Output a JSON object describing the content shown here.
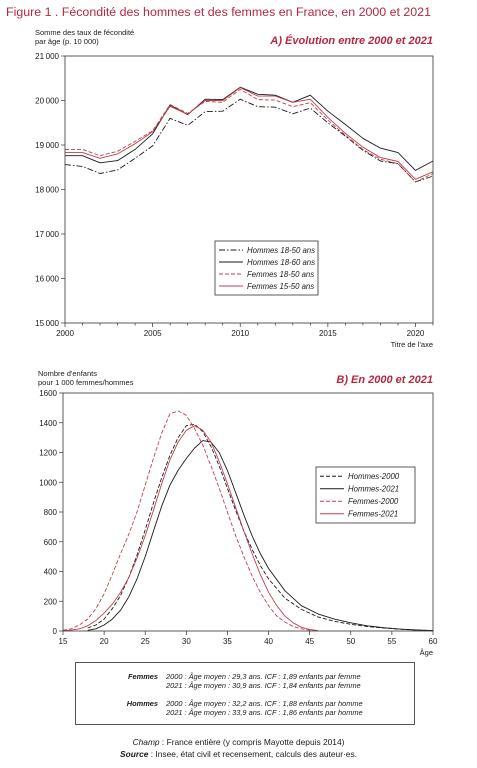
{
  "figure": {
    "title": "Figure 1 . Fécondité des hommes et des femmes en France, en 2000 et 2021",
    "colors": {
      "accent": "#b5283f",
      "hommes": "#1a1a1a",
      "femmes": "#c0404f"
    }
  },
  "panel_a": {
    "heading": "A) Évolution entre 2000 et 2021",
    "ylabel_line1": "Somme des taux de fécondité",
    "ylabel_line2": "par âge (p. 10 000)",
    "xlabel": "Titre de l'axe"
  },
  "panel_b": {
    "heading": "B) En 2000 et 2021",
    "ylabel_line1": "Nombre d'enfants",
    "ylabel_line2": "pour 1 000 femmes/hommes",
    "xlabel": "Âge"
  },
  "info": {
    "femmes_label": "Femmes",
    "femmes_2000": "2000 : Âge moyen : 29,3 ans. ICF : 1,89  enfants par femme",
    "femmes_2021": "2021 : Âge moyen : 30,9 ans. ICF : 1,84  enfants par femme",
    "hommes_label": "Hommes",
    "hommes_2000": "2000 : Âge moyen : 32,2 ans. ICF : 1,88 enfants par homme",
    "hommes_2021": "2021 : Âge moyen : 33,9 ans. ICF : 1,86 enfants par homme"
  },
  "footer": {
    "champ_label": "Champ",
    "champ_text": " : France entière (y compris Mayotte depuis 2014)",
    "source_label": "Source",
    "source_text": " : Insee, état civil et recensement, calculs des auteur·es."
  },
  "chart_data": [
    {
      "type": "line",
      "title": "A) Évolution entre 2000 et 2021",
      "ylabel": "Somme des taux de fécondité par âge (p. 10 000)",
      "xlabel": "Titre de l'axe",
      "xlim": [
        2000,
        2021
      ],
      "ylim": [
        15000,
        21000
      ],
      "xticks": [
        2000,
        2005,
        2010,
        2015,
        2020
      ],
      "yticks": [
        15000,
        16000,
        17000,
        18000,
        19000,
        20000,
        21000
      ],
      "grid": false,
      "legend_position": "bottom-right",
      "x": [
        2000,
        2001,
        2002,
        2003,
        2004,
        2005,
        2006,
        2007,
        2008,
        2009,
        2010,
        2011,
        2012,
        2013,
        2014,
        2015,
        2016,
        2017,
        2018,
        2019,
        2020,
        2021
      ],
      "series": [
        {
          "name": "Hommes 18-50 ans",
          "style": "dashdot",
          "color": "#1a1a1a",
          "values": [
            18560,
            18520,
            18360,
            18440,
            18700,
            18980,
            19600,
            19440,
            19750,
            19760,
            20030,
            19860,
            19850,
            19700,
            19830,
            19500,
            19200,
            18880,
            18640,
            18580,
            18170,
            18300
          ]
        },
        {
          "name": "Hommes 18-60 ans",
          "style": "solid",
          "color": "#1a1a1a",
          "values": [
            18760,
            18760,
            18600,
            18650,
            18900,
            19250,
            19900,
            19680,
            20030,
            20020,
            20300,
            20140,
            20120,
            19960,
            20120,
            19760,
            19460,
            19150,
            18930,
            18830,
            18430,
            18640
          ]
        },
        {
          "name": "Femmes 18-50 ans",
          "style": "dashed",
          "color": "#c0404f",
          "values": [
            18900,
            18900,
            18760,
            18860,
            19080,
            19320,
            19910,
            19710,
            19980,
            19960,
            20250,
            20020,
            20010,
            19860,
            19950,
            19560,
            19220,
            18900,
            18680,
            18580,
            18170,
            18360
          ]
        },
        {
          "name": "Femmes 15-50 ans",
          "style": "solid",
          "color": "#c0404f",
          "values": [
            18830,
            18830,
            18700,
            18800,
            19030,
            19300,
            19870,
            19690,
            20000,
            20000,
            20290,
            20100,
            20100,
            19960,
            20030,
            19620,
            19260,
            18950,
            18720,
            18630,
            18230,
            18400
          ]
        }
      ]
    },
    {
      "type": "line",
      "title": "B) En 2000 et 2021",
      "ylabel": "Nombre d'enfants pour 1 000 femmes/hommes",
      "xlabel": "Âge",
      "xlim": [
        15,
        60
      ],
      "ylim": [
        0,
        1600
      ],
      "xticks": [
        15,
        20,
        25,
        30,
        35,
        40,
        45,
        50,
        55,
        60
      ],
      "yticks": [
        0,
        200,
        400,
        600,
        800,
        1000,
        1200,
        1400,
        1600
      ],
      "grid": false,
      "legend_position": "right",
      "series": [
        {
          "name": "Hommes-2000",
          "style": "dashed",
          "color": "#1a1a1a",
          "x": [
            18,
            19,
            20,
            21,
            22,
            23,
            24,
            25,
            26,
            27,
            28,
            29,
            30,
            31,
            32,
            33,
            34,
            35,
            36,
            37,
            38,
            39,
            40,
            42,
            44,
            46,
            48,
            50,
            52,
            54,
            56,
            58,
            60
          ],
          "values": [
            20,
            40,
            80,
            150,
            240,
            360,
            510,
            680,
            860,
            1030,
            1180,
            1300,
            1380,
            1390,
            1340,
            1240,
            1110,
            960,
            810,
            670,
            550,
            440,
            350,
            220,
            145,
            95,
            65,
            45,
            30,
            20,
            12,
            6,
            3
          ]
        },
        {
          "name": "Hommes-2021",
          "style": "solid",
          "color": "#1a1a1a",
          "x": [
            18,
            19,
            20,
            21,
            22,
            23,
            24,
            25,
            26,
            27,
            28,
            29,
            30,
            31,
            32,
            33,
            34,
            35,
            36,
            37,
            38,
            39,
            40,
            42,
            44,
            46,
            48,
            50,
            52,
            54,
            56,
            58,
            60
          ],
          "values": [
            5,
            15,
            40,
            80,
            140,
            230,
            350,
            500,
            670,
            840,
            980,
            1080,
            1160,
            1230,
            1280,
            1270,
            1200,
            1080,
            930,
            780,
            640,
            520,
            420,
            270,
            170,
            115,
            80,
            55,
            35,
            22,
            13,
            7,
            3
          ]
        },
        {
          "name": "Femmes-2000",
          "style": "dashed",
          "color": "#c0404f",
          "x": [
            15,
            16,
            17,
            18,
            19,
            20,
            21,
            22,
            23,
            24,
            25,
            26,
            27,
            28,
            29,
            30,
            31,
            32,
            33,
            34,
            35,
            36,
            37,
            38,
            39,
            40,
            41,
            42,
            43,
            44,
            45,
            46
          ],
          "values": [
            5,
            15,
            40,
            80,
            150,
            250,
            380,
            520,
            650,
            800,
            980,
            1160,
            1330,
            1460,
            1480,
            1450,
            1360,
            1250,
            1110,
            960,
            800,
            640,
            500,
            370,
            260,
            170,
            100,
            60,
            30,
            15,
            6,
            2
          ]
        },
        {
          "name": "Femmes-2021",
          "style": "solid",
          "color": "#c0404f",
          "x": [
            15,
            16,
            17,
            18,
            19,
            20,
            21,
            22,
            23,
            24,
            25,
            26,
            27,
            28,
            29,
            30,
            31,
            32,
            33,
            34,
            35,
            36,
            37,
            38,
            39,
            40,
            41,
            42,
            43,
            44,
            45,
            46
          ],
          "values": [
            2,
            6,
            15,
            35,
            70,
            120,
            180,
            260,
            360,
            490,
            640,
            810,
            990,
            1150,
            1270,
            1350,
            1380,
            1350,
            1270,
            1140,
            990,
            830,
            670,
            520,
            380,
            260,
            170,
            100,
            55,
            25,
            10,
            3
          ]
        }
      ]
    }
  ]
}
